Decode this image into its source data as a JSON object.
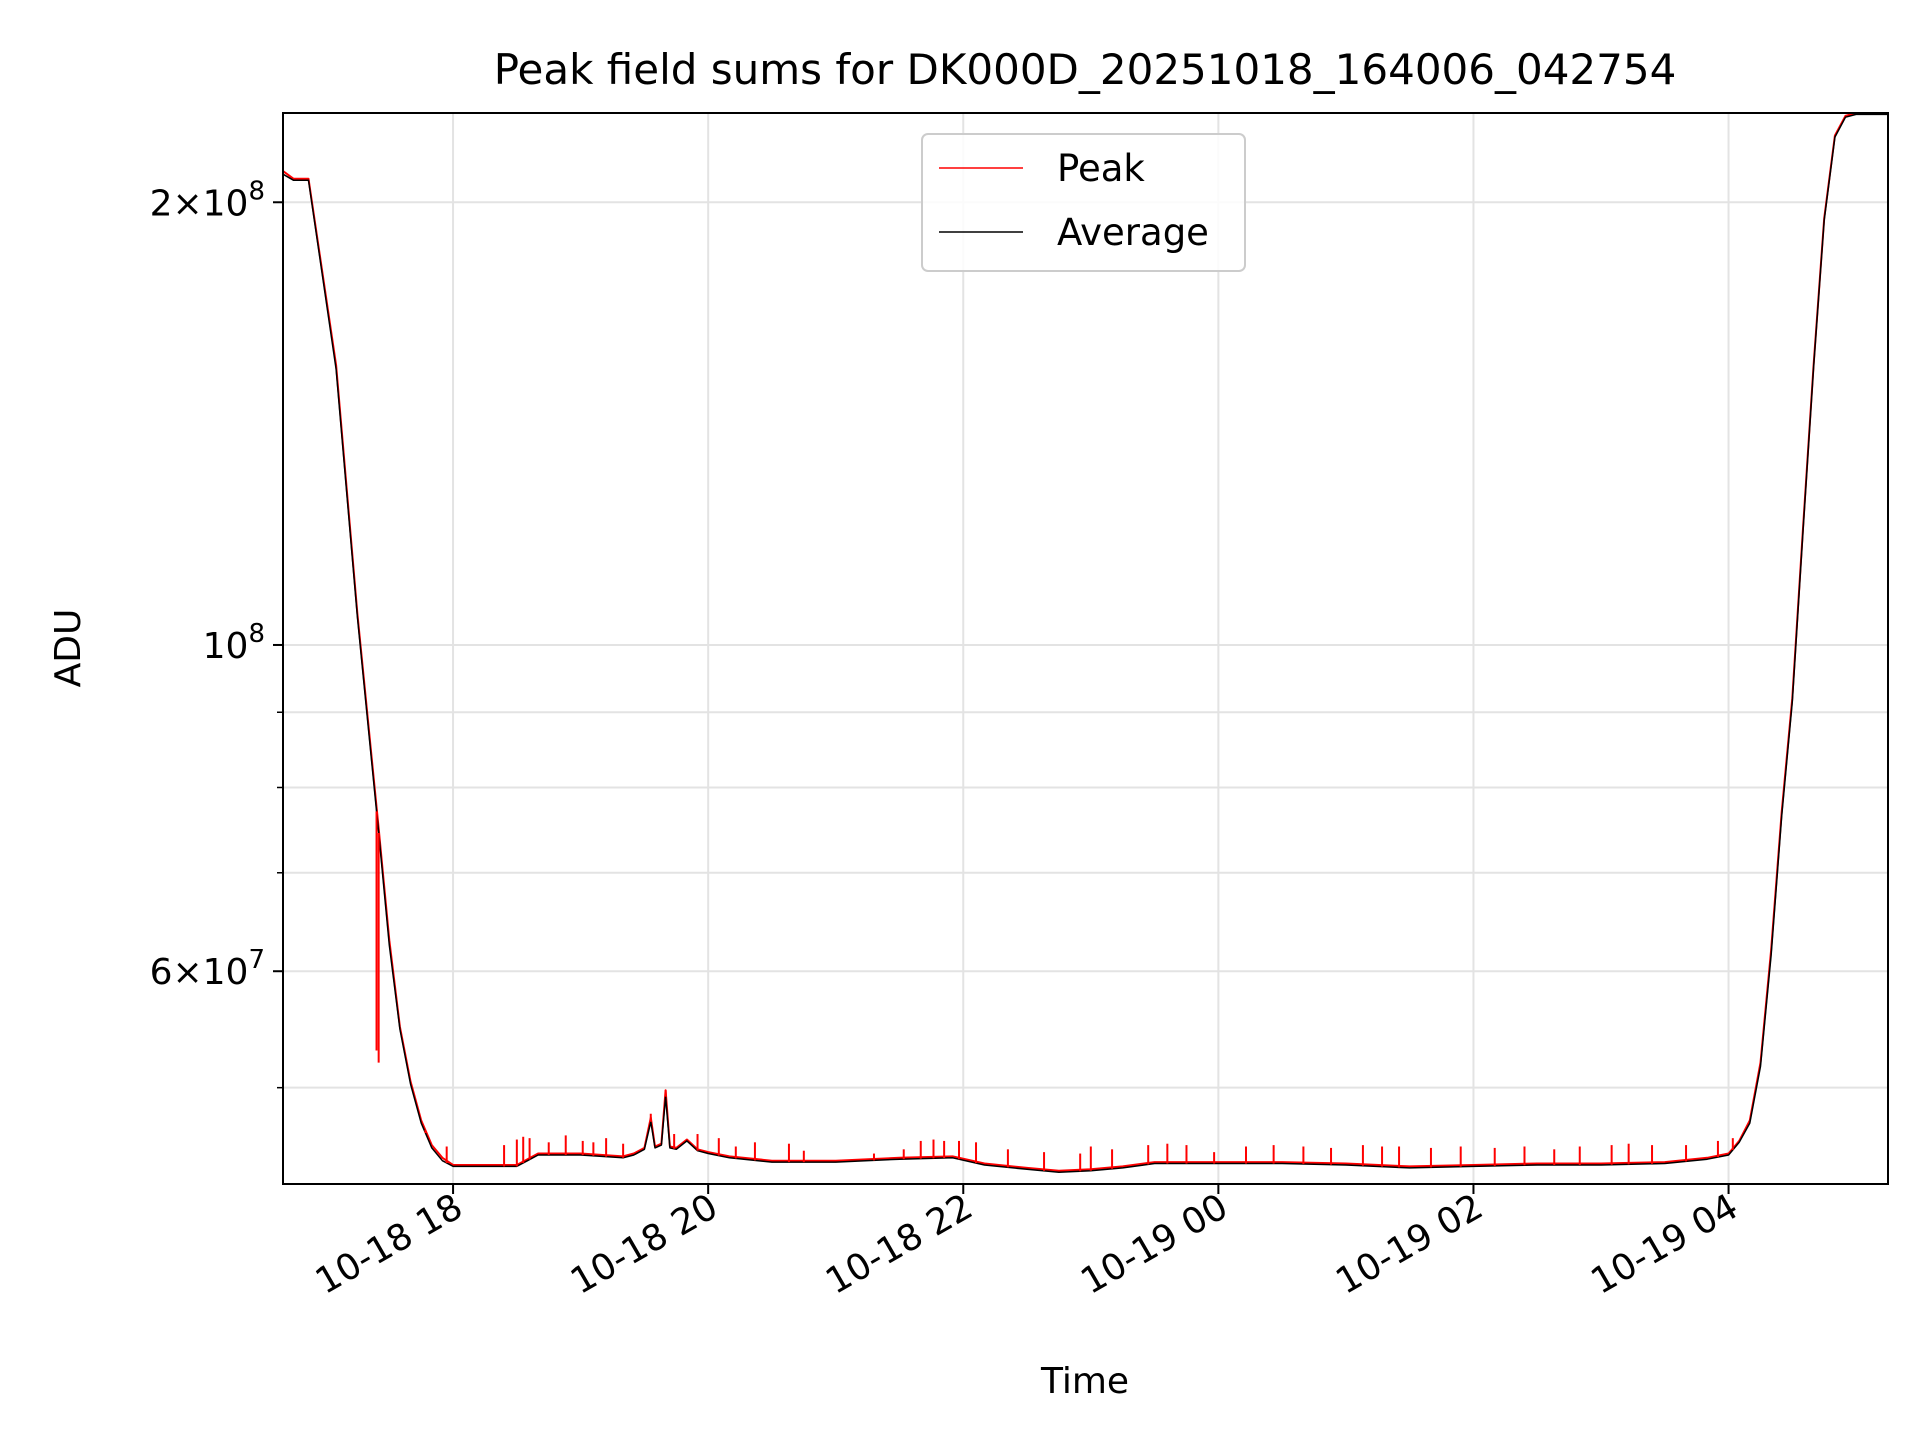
{
  "chart_data": {
    "type": "line",
    "title": "Peak field sums for DK000D_20251018_164006_042754",
    "xlabel": "Time",
    "ylabel": "ADU",
    "xlim": [
      "2025-10-18 16:40",
      "2025-10-19 05:15"
    ],
    "ylim": [
      43000000,
      230000000
    ],
    "yscale": "log",
    "grid": true,
    "legend_position": "upper center",
    "x_ticks": [
      {
        "t": "2025-10-18 18:00",
        "label": "10-18 18"
      },
      {
        "t": "2025-10-18 20:00",
        "label": "10-18 20"
      },
      {
        "t": "2025-10-18 22:00",
        "label": "10-18 22"
      },
      {
        "t": "2025-10-19 00:00",
        "label": "10-19 00"
      },
      {
        "t": "2025-10-19 02:00",
        "label": "10-19 02"
      },
      {
        "t": "2025-10-19 04:00",
        "label": "10-19 04"
      }
    ],
    "y_major_ticks": [
      {
        "value": 200000000,
        "mantissa": "2",
        "exponent": "8"
      },
      {
        "value": 100000000,
        "mantissa": "",
        "exponent": "8"
      },
      {
        "value": 60000000,
        "mantissa": "6",
        "exponent": "7"
      }
    ],
    "y_minor_ticks": [
      50000000,
      70000000,
      80000000,
      90000000
    ],
    "series": [
      {
        "name": "Peak",
        "color": "#ff0000",
        "points": [
          [
            "2025-10-18 16:40",
            210000000
          ],
          [
            "2025-10-18 16:45",
            207500000
          ],
          [
            "2025-10-18 16:52",
            207500000
          ],
          [
            "2025-10-18 17:05",
            155000000
          ],
          [
            "2025-10-18 17:15",
            105000000
          ],
          [
            "2025-10-18 17:25",
            75000000
          ],
          [
            "2025-10-18 17:30",
            63000000
          ],
          [
            "2025-10-18 17:35",
            55000000
          ],
          [
            "2025-10-18 17:40",
            50500000
          ],
          [
            "2025-10-18 17:45",
            47500000
          ],
          [
            "2025-10-18 17:50",
            45700000
          ],
          [
            "2025-10-18 17:55",
            44800000
          ],
          [
            "2025-10-18 18:00",
            44300000
          ],
          [
            "2025-10-18 18:30",
            44300000
          ],
          [
            "2025-10-18 18:35",
            44700000
          ],
          [
            "2025-10-18 18:40",
            45100000
          ],
          [
            "2025-10-18 19:00",
            45100000
          ],
          [
            "2025-10-18 19:20",
            44900000
          ],
          [
            "2025-10-18 19:25",
            45100000
          ],
          [
            "2025-10-18 19:30",
            45500000
          ],
          [
            "2025-10-18 19:33",
            47700000
          ],
          [
            "2025-10-18 19:35",
            45600000
          ],
          [
            "2025-10-18 19:38",
            45800000
          ],
          [
            "2025-10-18 19:40",
            49800000
          ],
          [
            "2025-10-18 19:42",
            45600000
          ],
          [
            "2025-10-18 19:45",
            45500000
          ],
          [
            "2025-10-18 19:50",
            46100000
          ],
          [
            "2025-10-18 19:55",
            45400000
          ],
          [
            "2025-10-18 20:00",
            45200000
          ],
          [
            "2025-10-18 20:10",
            44900000
          ],
          [
            "2025-10-18 20:30",
            44600000
          ],
          [
            "2025-10-18 21:00",
            44600000
          ],
          [
            "2025-10-18 21:30",
            44800000
          ],
          [
            "2025-10-18 21:55",
            44900000
          ],
          [
            "2025-10-18 22:10",
            44400000
          ],
          [
            "2025-10-18 22:30",
            44100000
          ],
          [
            "2025-10-18 22:45",
            43900000
          ],
          [
            "2025-10-18 23:00",
            44000000
          ],
          [
            "2025-10-18 23:15",
            44200000
          ],
          [
            "2025-10-18 23:30",
            44500000
          ],
          [
            "2025-10-19 00:00",
            44500000
          ],
          [
            "2025-10-19 00:30",
            44500000
          ],
          [
            "2025-10-19 01:00",
            44400000
          ],
          [
            "2025-10-19 01:30",
            44200000
          ],
          [
            "2025-10-19 02:00",
            44300000
          ],
          [
            "2025-10-19 02:30",
            44400000
          ],
          [
            "2025-10-19 03:00",
            44400000
          ],
          [
            "2025-10-19 03:30",
            44500000
          ],
          [
            "2025-10-19 03:50",
            44800000
          ],
          [
            "2025-10-19 04:00",
            45100000
          ],
          [
            "2025-10-19 04:05",
            46000000
          ],
          [
            "2025-10-19 04:10",
            47500000
          ],
          [
            "2025-10-19 04:15",
            52000000
          ],
          [
            "2025-10-19 04:20",
            62000000
          ],
          [
            "2025-10-19 04:25",
            77000000
          ],
          [
            "2025-10-19 04:30",
            92000000
          ],
          [
            "2025-10-19 04:35",
            120000000
          ],
          [
            "2025-10-19 04:40",
            155000000
          ],
          [
            "2025-10-19 04:45",
            195000000
          ],
          [
            "2025-10-19 04:50",
            222000000
          ],
          [
            "2025-10-19 04:55",
            229000000
          ],
          [
            "2025-10-19 05:00",
            230000000
          ],
          [
            "2025-10-19 05:15",
            230000000
          ]
        ],
        "spikes": [
          [
            "2025-10-18 17:24",
            53000000
          ],
          [
            "2025-10-18 17:25",
            52000000
          ],
          [
            "2025-10-18 17:47",
            46800000
          ],
          [
            "2025-10-18 17:57",
            45600000
          ],
          [
            "2025-10-18 18:24",
            45700000
          ],
          [
            "2025-10-18 18:30",
            46100000
          ],
          [
            "2025-10-18 18:33",
            46300000
          ],
          [
            "2025-10-18 18:36",
            46200000
          ],
          [
            "2025-10-18 18:45",
            45900000
          ],
          [
            "2025-10-18 18:53",
            46400000
          ],
          [
            "2025-10-18 19:01",
            46000000
          ],
          [
            "2025-10-18 19:06",
            45900000
          ],
          [
            "2025-10-18 19:12",
            46200000
          ],
          [
            "2025-10-18 19:20",
            45800000
          ],
          [
            "2025-10-18 19:33",
            48000000
          ],
          [
            "2025-10-18 19:40",
            49800000
          ],
          [
            "2025-10-18 19:44",
            46500000
          ],
          [
            "2025-10-18 19:55",
            46500000
          ],
          [
            "2025-10-18 20:05",
            46200000
          ],
          [
            "2025-10-18 20:13",
            45600000
          ],
          [
            "2025-10-18 20:22",
            45900000
          ],
          [
            "2025-10-18 20:38",
            45800000
          ],
          [
            "2025-10-18 20:45",
            45300000
          ],
          [
            "2025-10-18 21:18",
            45100000
          ],
          [
            "2025-10-18 21:32",
            45400000
          ],
          [
            "2025-10-18 21:40",
            46000000
          ],
          [
            "2025-10-18 21:46",
            46100000
          ],
          [
            "2025-10-18 21:51",
            46000000
          ],
          [
            "2025-10-18 21:58",
            46000000
          ],
          [
            "2025-10-18 22:06",
            45900000
          ],
          [
            "2025-10-18 22:21",
            45400000
          ],
          [
            "2025-10-18 22:38",
            45200000
          ],
          [
            "2025-10-18 22:55",
            45100000
          ],
          [
            "2025-10-18 23:00",
            45600000
          ],
          [
            "2025-10-18 23:10",
            45400000
          ],
          [
            "2025-10-18 23:27",
            45700000
          ],
          [
            "2025-10-18 23:36",
            45800000
          ],
          [
            "2025-10-18 23:45",
            45700000
          ],
          [
            "2025-10-18 23:58",
            45200000
          ],
          [
            "2025-10-19 00:13",
            45600000
          ],
          [
            "2025-10-19 00:26",
            45700000
          ],
          [
            "2025-10-19 00:40",
            45600000
          ],
          [
            "2025-10-19 00:53",
            45500000
          ],
          [
            "2025-10-19 01:08",
            45700000
          ],
          [
            "2025-10-19 01:17",
            45600000
          ],
          [
            "2025-10-19 01:25",
            45600000
          ],
          [
            "2025-10-19 01:40",
            45500000
          ],
          [
            "2025-10-19 01:54",
            45600000
          ],
          [
            "2025-10-19 02:10",
            45500000
          ],
          [
            "2025-10-19 02:24",
            45600000
          ],
          [
            "2025-10-19 02:38",
            45400000
          ],
          [
            "2025-10-19 02:50",
            45600000
          ],
          [
            "2025-10-19 03:05",
            45700000
          ],
          [
            "2025-10-19 03:13",
            45800000
          ],
          [
            "2025-10-19 03:24",
            45700000
          ],
          [
            "2025-10-19 03:40",
            45700000
          ],
          [
            "2025-10-19 03:55",
            46000000
          ],
          [
            "2025-10-19 04:02",
            46200000
          ]
        ]
      },
      {
        "name": "Average",
        "color": "#000000",
        "points": [
          [
            "2025-10-18 16:40",
            209000000
          ],
          [
            "2025-10-18 16:45",
            207000000
          ],
          [
            "2025-10-18 16:52",
            207000000
          ],
          [
            "2025-10-18 17:05",
            154000000
          ],
          [
            "2025-10-18 17:15",
            104500000
          ],
          [
            "2025-10-18 17:25",
            74500000
          ],
          [
            "2025-10-18 17:30",
            62500000
          ],
          [
            "2025-10-18 17:35",
            54800000
          ],
          [
            "2025-10-18 17:40",
            50300000
          ],
          [
            "2025-10-18 17:45",
            47300000
          ],
          [
            "2025-10-18 17:50",
            45500000
          ],
          [
            "2025-10-18 17:55",
            44600000
          ],
          [
            "2025-10-18 18:00",
            44200000
          ],
          [
            "2025-10-18 18:30",
            44200000
          ],
          [
            "2025-10-18 18:35",
            44600000
          ],
          [
            "2025-10-18 18:40",
            45000000
          ],
          [
            "2025-10-18 19:00",
            45000000
          ],
          [
            "2025-10-18 19:20",
            44800000
          ],
          [
            "2025-10-18 19:25",
            45000000
          ],
          [
            "2025-10-18 19:30",
            45400000
          ],
          [
            "2025-10-18 19:33",
            47400000
          ],
          [
            "2025-10-18 19:35",
            45500000
          ],
          [
            "2025-10-18 19:38",
            45700000
          ],
          [
            "2025-10-18 19:40",
            49300000
          ],
          [
            "2025-10-18 19:42",
            45500000
          ],
          [
            "2025-10-18 19:45",
            45400000
          ],
          [
            "2025-10-18 19:50",
            46000000
          ],
          [
            "2025-10-18 19:55",
            45300000
          ],
          [
            "2025-10-18 20:00",
            45100000
          ],
          [
            "2025-10-18 20:10",
            44800000
          ],
          [
            "2025-10-18 20:30",
            44500000
          ],
          [
            "2025-10-18 21:00",
            44500000
          ],
          [
            "2025-10-18 21:30",
            44700000
          ],
          [
            "2025-10-18 21:55",
            44800000
          ],
          [
            "2025-10-18 22:10",
            44300000
          ],
          [
            "2025-10-18 22:30",
            44000000
          ],
          [
            "2025-10-18 22:45",
            43800000
          ],
          [
            "2025-10-18 23:00",
            43900000
          ],
          [
            "2025-10-18 23:15",
            44100000
          ],
          [
            "2025-10-18 23:30",
            44400000
          ],
          [
            "2025-10-19 00:00",
            44400000
          ],
          [
            "2025-10-19 00:30",
            44400000
          ],
          [
            "2025-10-19 01:00",
            44300000
          ],
          [
            "2025-10-19 01:30",
            44100000
          ],
          [
            "2025-10-19 02:00",
            44200000
          ],
          [
            "2025-10-19 02:30",
            44300000
          ],
          [
            "2025-10-19 03:00",
            44300000
          ],
          [
            "2025-10-19 03:30",
            44400000
          ],
          [
            "2025-10-19 03:50",
            44700000
          ],
          [
            "2025-10-19 04:00",
            45000000
          ],
          [
            "2025-10-19 04:05",
            45900000
          ],
          [
            "2025-10-19 04:10",
            47300000
          ],
          [
            "2025-10-19 04:15",
            51700000
          ],
          [
            "2025-10-19 04:20",
            61500000
          ],
          [
            "2025-10-19 04:25",
            76500000
          ],
          [
            "2025-10-19 04:30",
            91500000
          ],
          [
            "2025-10-19 04:35",
            119500000
          ],
          [
            "2025-10-19 04:40",
            154500000
          ],
          [
            "2025-10-19 04:45",
            194500000
          ],
          [
            "2025-10-19 04:50",
            221500000
          ],
          [
            "2025-10-19 04:55",
            228500000
          ],
          [
            "2025-10-19 05:00",
            229500000
          ],
          [
            "2025-10-19 05:15",
            229500000
          ]
        ]
      }
    ]
  }
}
